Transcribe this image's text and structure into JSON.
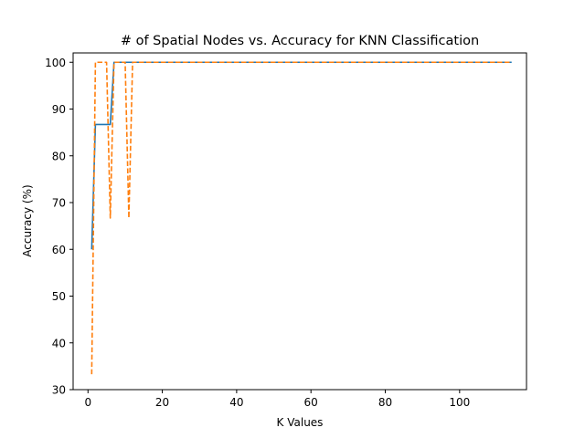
{
  "chart_data": {
    "type": "line",
    "title": "# of Spatial Nodes vs. Accuracy for KNN Classification",
    "xlabel": "K Values",
    "ylabel": "Accuracy (%)",
    "xlim": [
      -4,
      118
    ],
    "ylim": [
      30,
      102
    ],
    "xticks": [
      0,
      20,
      40,
      60,
      80,
      100
    ],
    "yticks": [
      30,
      40,
      50,
      60,
      70,
      80,
      90,
      100
    ],
    "grid": false,
    "legend": "none",
    "series": [
      {
        "color": "#1f77b4",
        "style": "solid",
        "x": [
          1,
          2,
          3,
          4,
          5,
          6,
          7,
          114
        ],
        "y": [
          60,
          86.7,
          86.7,
          86.7,
          86.7,
          86.7,
          100,
          100
        ]
      },
      {
        "color": "#ff7f0e",
        "style": "dashed",
        "x": [
          1,
          2,
          3,
          4,
          5,
          6,
          7,
          8,
          9,
          10,
          11,
          12,
          114
        ],
        "y": [
          33.3,
          100,
          100,
          100,
          100,
          66.7,
          100,
          100,
          100,
          100,
          66.7,
          100,
          100
        ]
      }
    ]
  }
}
